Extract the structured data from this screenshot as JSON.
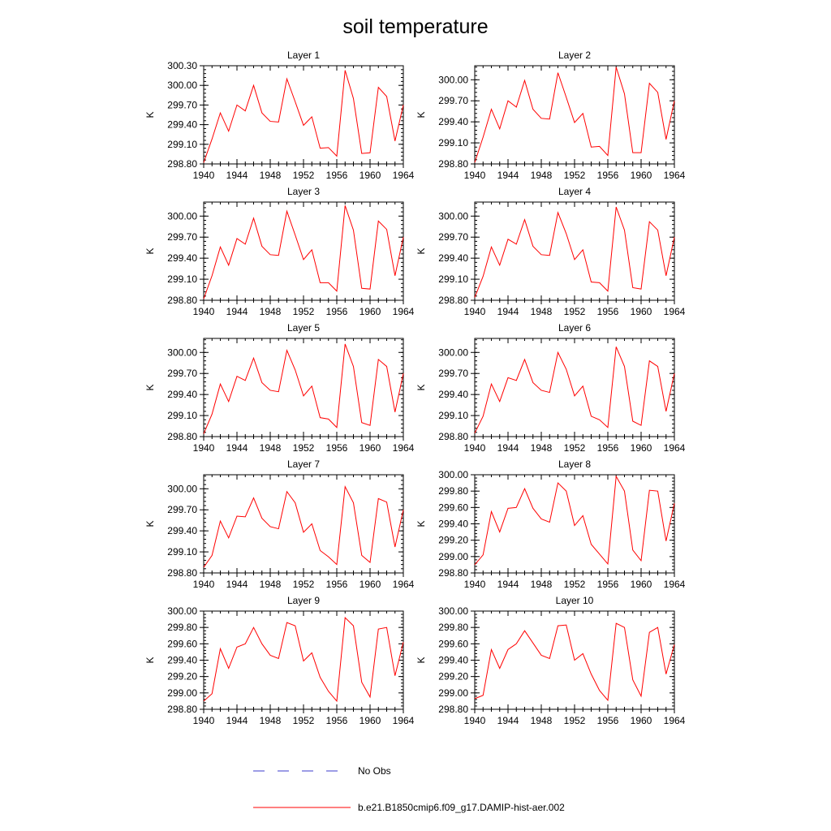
{
  "title": "soil temperature",
  "legend": {
    "obs_label": "No Obs",
    "model_label": "b.e21.B1850cmip6.f09_g17.DAMIP-hist-aer.002",
    "obs_color": "#3b3bcc",
    "model_color": "#ff0000"
  },
  "chart_data": [
    {
      "type": "line",
      "title": "Layer 1",
      "ylabel": "K",
      "xlim": [
        1940,
        1964
      ],
      "ylim": [
        298.8,
        300.3
      ],
      "xticks": [
        "1940",
        "1944",
        "1948",
        "1952",
        "1956",
        "1960",
        "1964"
      ],
      "yticks": [
        "298.80",
        "299.10",
        "299.40",
        "299.70",
        "300.00",
        "300.30"
      ],
      "x": [
        1940,
        1941,
        1942,
        1943,
        1944,
        1945,
        1946,
        1947,
        1948,
        1949,
        1950,
        1951,
        1952,
        1953,
        1954,
        1955,
        1956,
        1957,
        1958,
        1959,
        1960,
        1961,
        1962,
        1963,
        1964
      ],
      "series": [
        {
          "name": "b.e21.B1850cmip6.f09_g17.DAMIP-hist-aer.002",
          "values": [
            298.82,
            299.18,
            299.58,
            299.3,
            299.7,
            299.61,
            300.0,
            299.58,
            299.45,
            299.44,
            300.1,
            299.75,
            299.39,
            299.52,
            299.04,
            299.05,
            298.92,
            300.23,
            299.8,
            298.96,
            298.97,
            299.97,
            299.83,
            299.15,
            299.7
          ]
        }
      ]
    },
    {
      "type": "line",
      "title": "Layer 2",
      "ylabel": "K",
      "xlim": [
        1940,
        1964
      ],
      "ylim": [
        298.8,
        300.2
      ],
      "xticks": [
        "1940",
        "1944",
        "1948",
        "1952",
        "1956",
        "1960",
        "1964"
      ],
      "yticks": [
        "298.80",
        "299.10",
        "299.40",
        "299.70",
        "300.00"
      ],
      "x": [
        1940,
        1941,
        1942,
        1943,
        1944,
        1945,
        1946,
        1947,
        1948,
        1949,
        1950,
        1951,
        1952,
        1953,
        1954,
        1955,
        1956,
        1957,
        1958,
        1959,
        1960,
        1961,
        1962,
        1963,
        1964
      ],
      "series": [
        {
          "name": "b.e21.B1850cmip6.f09_g17.DAMIP-hist-aer.002",
          "values": [
            298.82,
            299.18,
            299.58,
            299.3,
            299.7,
            299.61,
            299.99,
            299.58,
            299.45,
            299.44,
            300.1,
            299.75,
            299.39,
            299.52,
            299.04,
            299.05,
            298.92,
            300.18,
            299.8,
            298.96,
            298.96,
            299.95,
            299.82,
            299.15,
            299.7
          ]
        }
      ]
    },
    {
      "type": "line",
      "title": "Layer 3",
      "ylabel": "K",
      "xlim": [
        1940,
        1964
      ],
      "ylim": [
        298.8,
        300.2
      ],
      "xticks": [
        "1940",
        "1944",
        "1948",
        "1952",
        "1956",
        "1960",
        "1964"
      ],
      "yticks": [
        "298.80",
        "299.10",
        "299.40",
        "299.70",
        "300.00"
      ],
      "x": [
        1940,
        1941,
        1942,
        1943,
        1944,
        1945,
        1946,
        1947,
        1948,
        1949,
        1950,
        1951,
        1952,
        1953,
        1954,
        1955,
        1956,
        1957,
        1958,
        1959,
        1960,
        1961,
        1962,
        1963,
        1964
      ],
      "series": [
        {
          "name": "b.e21.B1850cmip6.f09_g17.DAMIP-hist-aer.002",
          "values": [
            298.82,
            299.15,
            299.56,
            299.3,
            299.68,
            299.6,
            299.97,
            299.57,
            299.45,
            299.44,
            300.07,
            299.73,
            299.38,
            299.52,
            299.05,
            299.05,
            298.93,
            300.15,
            299.8,
            298.97,
            298.96,
            299.93,
            299.81,
            299.15,
            299.7
          ]
        }
      ]
    },
    {
      "type": "line",
      "title": "Layer 4",
      "ylabel": "K",
      "xlim": [
        1940,
        1964
      ],
      "ylim": [
        298.8,
        300.2
      ],
      "xticks": [
        "1940",
        "1944",
        "1948",
        "1952",
        "1956",
        "1960",
        "1964"
      ],
      "yticks": [
        "298.80",
        "299.10",
        "299.40",
        "299.70",
        "300.00"
      ],
      "x": [
        1940,
        1941,
        1942,
        1943,
        1944,
        1945,
        1946,
        1947,
        1948,
        1949,
        1950,
        1951,
        1952,
        1953,
        1954,
        1955,
        1956,
        1957,
        1958,
        1959,
        1960,
        1961,
        1962,
        1963,
        1964
      ],
      "series": [
        {
          "name": "b.e21.B1850cmip6.f09_g17.DAMIP-hist-aer.002",
          "values": [
            298.84,
            299.14,
            299.56,
            299.3,
            299.67,
            299.6,
            299.95,
            299.57,
            299.45,
            299.44,
            300.05,
            299.75,
            299.38,
            299.52,
            299.06,
            299.05,
            298.93,
            300.13,
            299.8,
            298.98,
            298.96,
            299.92,
            299.8,
            299.15,
            299.7
          ]
        }
      ]
    },
    {
      "type": "line",
      "title": "Layer 5",
      "ylabel": "K",
      "xlim": [
        1940,
        1964
      ],
      "ylim": [
        298.8,
        300.2
      ],
      "xticks": [
        "1940",
        "1944",
        "1948",
        "1952",
        "1956",
        "1960",
        "1964"
      ],
      "yticks": [
        "298.80",
        "299.10",
        "299.40",
        "299.70",
        "300.00"
      ],
      "x": [
        1940,
        1941,
        1942,
        1943,
        1944,
        1945,
        1946,
        1947,
        1948,
        1949,
        1950,
        1951,
        1952,
        1953,
        1954,
        1955,
        1956,
        1957,
        1958,
        1959,
        1960,
        1961,
        1962,
        1963,
        1964
      ],
      "series": [
        {
          "name": "b.e21.B1850cmip6.f09_g17.DAMIP-hist-aer.002",
          "values": [
            298.84,
            299.12,
            299.55,
            299.3,
            299.66,
            299.6,
            299.92,
            299.57,
            299.46,
            299.44,
            300.03,
            299.75,
            299.38,
            299.52,
            299.07,
            299.05,
            298.93,
            300.12,
            299.8,
            299.0,
            298.96,
            299.9,
            299.8,
            299.15,
            299.7
          ]
        }
      ]
    },
    {
      "type": "line",
      "title": "Layer 6",
      "ylabel": "K",
      "xlim": [
        1940,
        1964
      ],
      "ylim": [
        298.8,
        300.2
      ],
      "xticks": [
        "1940",
        "1944",
        "1948",
        "1952",
        "1956",
        "1960",
        "1964"
      ],
      "yticks": [
        "298.80",
        "299.10",
        "299.40",
        "299.70",
        "300.00"
      ],
      "x": [
        1940,
        1941,
        1942,
        1943,
        1944,
        1945,
        1946,
        1947,
        1948,
        1949,
        1950,
        1951,
        1952,
        1953,
        1954,
        1955,
        1956,
        1957,
        1958,
        1959,
        1960,
        1961,
        1962,
        1963,
        1964
      ],
      "series": [
        {
          "name": "b.e21.B1850cmip6.f09_g17.DAMIP-hist-aer.002",
          "values": [
            298.85,
            299.09,
            299.55,
            299.3,
            299.64,
            299.6,
            299.9,
            299.57,
            299.46,
            299.43,
            300.0,
            299.76,
            299.38,
            299.52,
            299.09,
            299.04,
            298.93,
            300.08,
            299.8,
            299.02,
            298.96,
            299.88,
            299.8,
            299.16,
            299.7
          ]
        }
      ]
    },
    {
      "type": "line",
      "title": "Layer 7",
      "ylabel": "K",
      "xlim": [
        1940,
        1964
      ],
      "ylim": [
        298.8,
        300.2
      ],
      "xticks": [
        "1940",
        "1944",
        "1948",
        "1952",
        "1956",
        "1960",
        "1964"
      ],
      "yticks": [
        "298.80",
        "299.10",
        "299.40",
        "299.70",
        "300.00"
      ],
      "x": [
        1940,
        1941,
        1942,
        1943,
        1944,
        1945,
        1946,
        1947,
        1948,
        1949,
        1950,
        1951,
        1952,
        1953,
        1954,
        1955,
        1956,
        1957,
        1958,
        1959,
        1960,
        1961,
        1962,
        1963,
        1964
      ],
      "series": [
        {
          "name": "b.e21.B1850cmip6.f09_g17.DAMIP-hist-aer.002",
          "values": [
            298.88,
            299.05,
            299.54,
            299.3,
            299.61,
            299.6,
            299.87,
            299.58,
            299.46,
            299.43,
            299.96,
            299.8,
            299.38,
            299.5,
            299.12,
            299.03,
            298.92,
            300.03,
            299.8,
            299.05,
            298.95,
            299.86,
            299.81,
            299.17,
            299.7
          ]
        }
      ]
    },
    {
      "type": "line",
      "title": "Layer 8",
      "ylabel": "K",
      "xlim": [
        1940,
        1964
      ],
      "ylim": [
        298.8,
        300.0
      ],
      "xticks": [
        "1940",
        "1944",
        "1948",
        "1952",
        "1956",
        "1960",
        "1964"
      ],
      "yticks": [
        "298.80",
        "299.00",
        "299.20",
        "299.40",
        "299.60",
        "299.80",
        "300.00"
      ],
      "x": [
        1940,
        1941,
        1942,
        1943,
        1944,
        1945,
        1946,
        1947,
        1948,
        1949,
        1950,
        1951,
        1952,
        1953,
        1954,
        1955,
        1956,
        1957,
        1958,
        1959,
        1960,
        1961,
        1962,
        1963,
        1964
      ],
      "series": [
        {
          "name": "b.e21.B1850cmip6.f09_g17.DAMIP-hist-aer.002",
          "values": [
            298.9,
            299.02,
            299.55,
            299.3,
            299.59,
            299.6,
            299.83,
            299.59,
            299.46,
            299.42,
            299.9,
            299.8,
            299.38,
            299.5,
            299.15,
            299.03,
            298.91,
            299.98,
            299.8,
            299.08,
            298.95,
            299.81,
            299.8,
            299.19,
            299.65
          ]
        }
      ]
    },
    {
      "type": "line",
      "title": "Layer 9",
      "ylabel": "K",
      "xlim": [
        1940,
        1964
      ],
      "ylim": [
        298.8,
        300.0
      ],
      "xticks": [
        "1940",
        "1944",
        "1948",
        "1952",
        "1956",
        "1960",
        "1964"
      ],
      "yticks": [
        "298.80",
        "299.00",
        "299.20",
        "299.40",
        "299.60",
        "299.80",
        "300.00"
      ],
      "x": [
        1940,
        1941,
        1942,
        1943,
        1944,
        1945,
        1946,
        1947,
        1948,
        1949,
        1950,
        1951,
        1952,
        1953,
        1954,
        1955,
        1956,
        1957,
        1958,
        1959,
        1960,
        1961,
        1962,
        1963,
        1964
      ],
      "series": [
        {
          "name": "b.e21.B1850cmip6.f09_g17.DAMIP-hist-aer.002",
          "values": [
            298.9,
            298.99,
            299.54,
            299.3,
            299.56,
            299.6,
            299.8,
            299.6,
            299.46,
            299.42,
            299.86,
            299.82,
            299.39,
            299.49,
            299.19,
            299.02,
            298.9,
            299.92,
            299.82,
            299.13,
            298.95,
            299.78,
            299.8,
            299.21,
            299.62
          ]
        }
      ]
    },
    {
      "type": "line",
      "title": "Layer 10",
      "ylabel": "K",
      "xlim": [
        1940,
        1964
      ],
      "ylim": [
        298.8,
        300.0
      ],
      "xticks": [
        "1940",
        "1944",
        "1948",
        "1952",
        "1956",
        "1960",
        "1964"
      ],
      "yticks": [
        "298.80",
        "299.00",
        "299.20",
        "299.40",
        "299.60",
        "299.80",
        "300.00"
      ],
      "x": [
        1940,
        1941,
        1942,
        1943,
        1944,
        1945,
        1946,
        1947,
        1948,
        1949,
        1950,
        1951,
        1952,
        1953,
        1954,
        1955,
        1956,
        1957,
        1958,
        1959,
        1960,
        1961,
        1962,
        1963,
        1964
      ],
      "series": [
        {
          "name": "b.e21.B1850cmip6.f09_g17.DAMIP-hist-aer.002",
          "values": [
            298.93,
            298.97,
            299.53,
            299.3,
            299.53,
            299.6,
            299.76,
            299.61,
            299.46,
            299.42,
            299.82,
            299.83,
            299.4,
            299.48,
            299.23,
            299.03,
            298.91,
            299.85,
            299.8,
            299.16,
            298.96,
            299.74,
            299.8,
            299.23,
            299.59
          ]
        }
      ]
    }
  ]
}
